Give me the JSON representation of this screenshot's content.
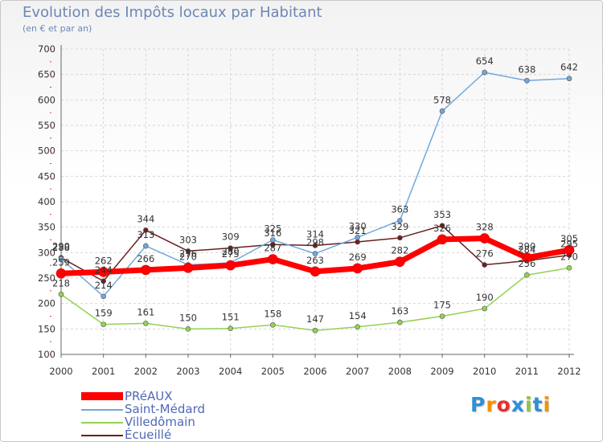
{
  "header": {
    "title": "Evolution des Impôts locaux par Habitant",
    "subtitle": "(en € et par an)"
  },
  "logo": {
    "text": "Proxiti"
  },
  "chart_data": {
    "type": "line",
    "title": "Evolution des Impôts locaux par Habitant",
    "subtitle": "(en € et par an)",
    "categories": [
      2000,
      2001,
      2002,
      2003,
      2004,
      2005,
      2006,
      2007,
      2008,
      2009,
      2010,
      2011,
      2012
    ],
    "ylim": [
      100,
      700
    ],
    "yticks": [
      100,
      150,
      200,
      250,
      300,
      350,
      400,
      450,
      500,
      550,
      600,
      650,
      700
    ],
    "grid": true,
    "legend_position": "bottom-left",
    "series": [
      {
        "name": "PRéAUX",
        "color": "#ff0000",
        "values": [
          259,
          262,
          266,
          270,
          275,
          287,
          263,
          269,
          282,
          326,
          328,
          290,
          305
        ]
      },
      {
        "name": "Saint-Médard",
        "color": "#6fa8dc",
        "values": [
          288,
          214,
          313,
          276,
          280,
          325,
          298,
          330,
          363,
          578,
          654,
          638,
          642
        ]
      },
      {
        "name": "Villedômain",
        "color": "#93d155",
        "values": [
          218,
          159,
          161,
          150,
          151,
          158,
          147,
          154,
          163,
          175,
          190,
          256,
          270
        ]
      },
      {
        "name": "Écueillé",
        "color": "#6b1f1f",
        "values": [
          290,
          244,
          344,
          303,
          309,
          316,
          314,
          321,
          329,
          353,
          276,
          284,
          295
        ]
      }
    ]
  }
}
